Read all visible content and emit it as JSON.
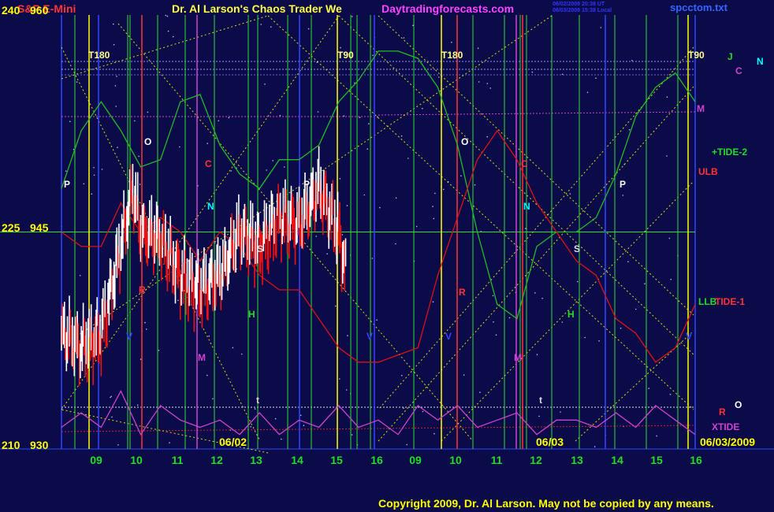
{
  "header": {
    "instrument": "S&P E-Mini",
    "title": "Dr. Al Larson's Chaos Trader We",
    "site": "Daytradingforecasts.com",
    "stamp_line1": "06/02/2009 20:38 UT",
    "stamp_line2": "06/03/2009 15:38 Local",
    "filename": "spcctom.txt"
  },
  "left_axis": [
    {
      "deg": "240",
      "price": "960"
    },
    {
      "deg": "225",
      "price": "945"
    },
    {
      "deg": "210",
      "price": "930"
    }
  ],
  "footer": {
    "copyright": "Copyright 2009, Dr. Al Larson. May not be copied by any means."
  },
  "colors": {
    "background": "#0b0b4a",
    "tide2": "#22bb22",
    "tide1": "#dd1111",
    "xtide": "#cc44cc",
    "price_up": "#ffffff",
    "price_down": "#ee1111",
    "grid_green": "#33dd33",
    "vline_yellow": "#ffff00"
  },
  "chart_data": {
    "type": "line",
    "title": "S&P E-Mini",
    "y_price_range": [
      930,
      960
    ],
    "y_degree_range": [
      210,
      240
    ],
    "x_ticks": [
      "09",
      "10",
      "11",
      "12",
      "13",
      "14",
      "15",
      "16",
      "09",
      "10",
      "11",
      "12",
      "13",
      "14",
      "15",
      "16"
    ],
    "date_labels": [
      "06/02",
      "06/03",
      "06/03/2009"
    ],
    "cycle_labels": [
      "T180",
      "T90",
      "T180",
      "T90"
    ],
    "right_labels": [
      "J",
      "N",
      "C",
      "M",
      "+TIDE-2",
      "ULB",
      "LLB",
      "TIDE-1",
      "R",
      "O",
      "XTIDE"
    ],
    "planet_glyphs": [
      "P",
      "O",
      "C",
      "N",
      "M",
      "H",
      "S",
      "V",
      "R",
      "t"
    ],
    "series": [
      {
        "name": "+TIDE-2",
        "x": [
          0,
          0.5,
          1,
          1.5,
          2,
          2.5,
          3,
          3.5,
          4,
          4.5,
          5,
          5.5,
          6,
          6.5,
          7,
          7.5,
          8,
          8.5,
          9,
          9.5,
          10,
          10.5,
          11,
          11.5,
          12,
          12.5,
          13,
          13.5,
          14,
          14.5,
          15,
          15.5,
          16
        ],
        "y": [
          948,
          952,
          954,
          952,
          949.5,
          950,
          954,
          954.5,
          951,
          949,
          948,
          950,
          950,
          951,
          954,
          955.5,
          957.5,
          957.5,
          957,
          955,
          951,
          945,
          940,
          939,
          944,
          945,
          945,
          946,
          949,
          953,
          955,
          956,
          954
        ]
      },
      {
        "name": "TIDE-1",
        "x": [
          0,
          0.5,
          1,
          1.5,
          2,
          2.5,
          3,
          3.5,
          4,
          4.5,
          5,
          5.5,
          6,
          6.5,
          7,
          7.5,
          8,
          8.5,
          9,
          9.5,
          10,
          10.5,
          11,
          11.5,
          12,
          12.5,
          13,
          13.5,
          14,
          14.5,
          15,
          15.5,
          16
        ],
        "y": [
          945,
          944,
          944,
          947,
          945,
          946,
          945,
          943,
          945,
          944,
          942,
          941,
          941,
          939,
          937,
          936,
          936,
          936.5,
          937,
          942,
          946,
          950,
          952,
          950,
          947,
          945,
          943,
          942,
          939,
          938,
          936,
          937,
          940
        ]
      },
      {
        "name": "XTIDE",
        "x": [
          0,
          0.5,
          1,
          1.5,
          2,
          2.5,
          3,
          3.5,
          4,
          4.5,
          5,
          5.5,
          6,
          6.5,
          7,
          7.5,
          8,
          8.5,
          9,
          9.5,
          10,
          10.5,
          11,
          11.5,
          12,
          12.5,
          13,
          13.5,
          14,
          14.5,
          15,
          15.5,
          16
        ],
        "y": [
          931.5,
          932.5,
          931.5,
          934,
          931,
          933,
          932,
          931.5,
          932,
          931,
          932.5,
          931,
          932,
          931.5,
          933,
          931.5,
          932,
          931,
          933,
          932,
          933,
          931.5,
          932,
          932.5,
          931,
          932,
          932,
          931.5,
          932.5,
          931.5,
          933,
          932,
          931
        ]
      },
      {
        "name": "S&P E-Mini",
        "x": [
          0,
          0.5,
          1,
          1.5,
          1.8,
          2,
          2.5,
          3,
          3.5,
          4,
          4.5,
          5,
          5.5,
          6,
          6.5,
          7,
          7.2
        ],
        "y": [
          938,
          937,
          938,
          944,
          948,
          945,
          944.5,
          942,
          941,
          942,
          945,
          944,
          946,
          945.5,
          948,
          945,
          942
        ]
      }
    ]
  }
}
